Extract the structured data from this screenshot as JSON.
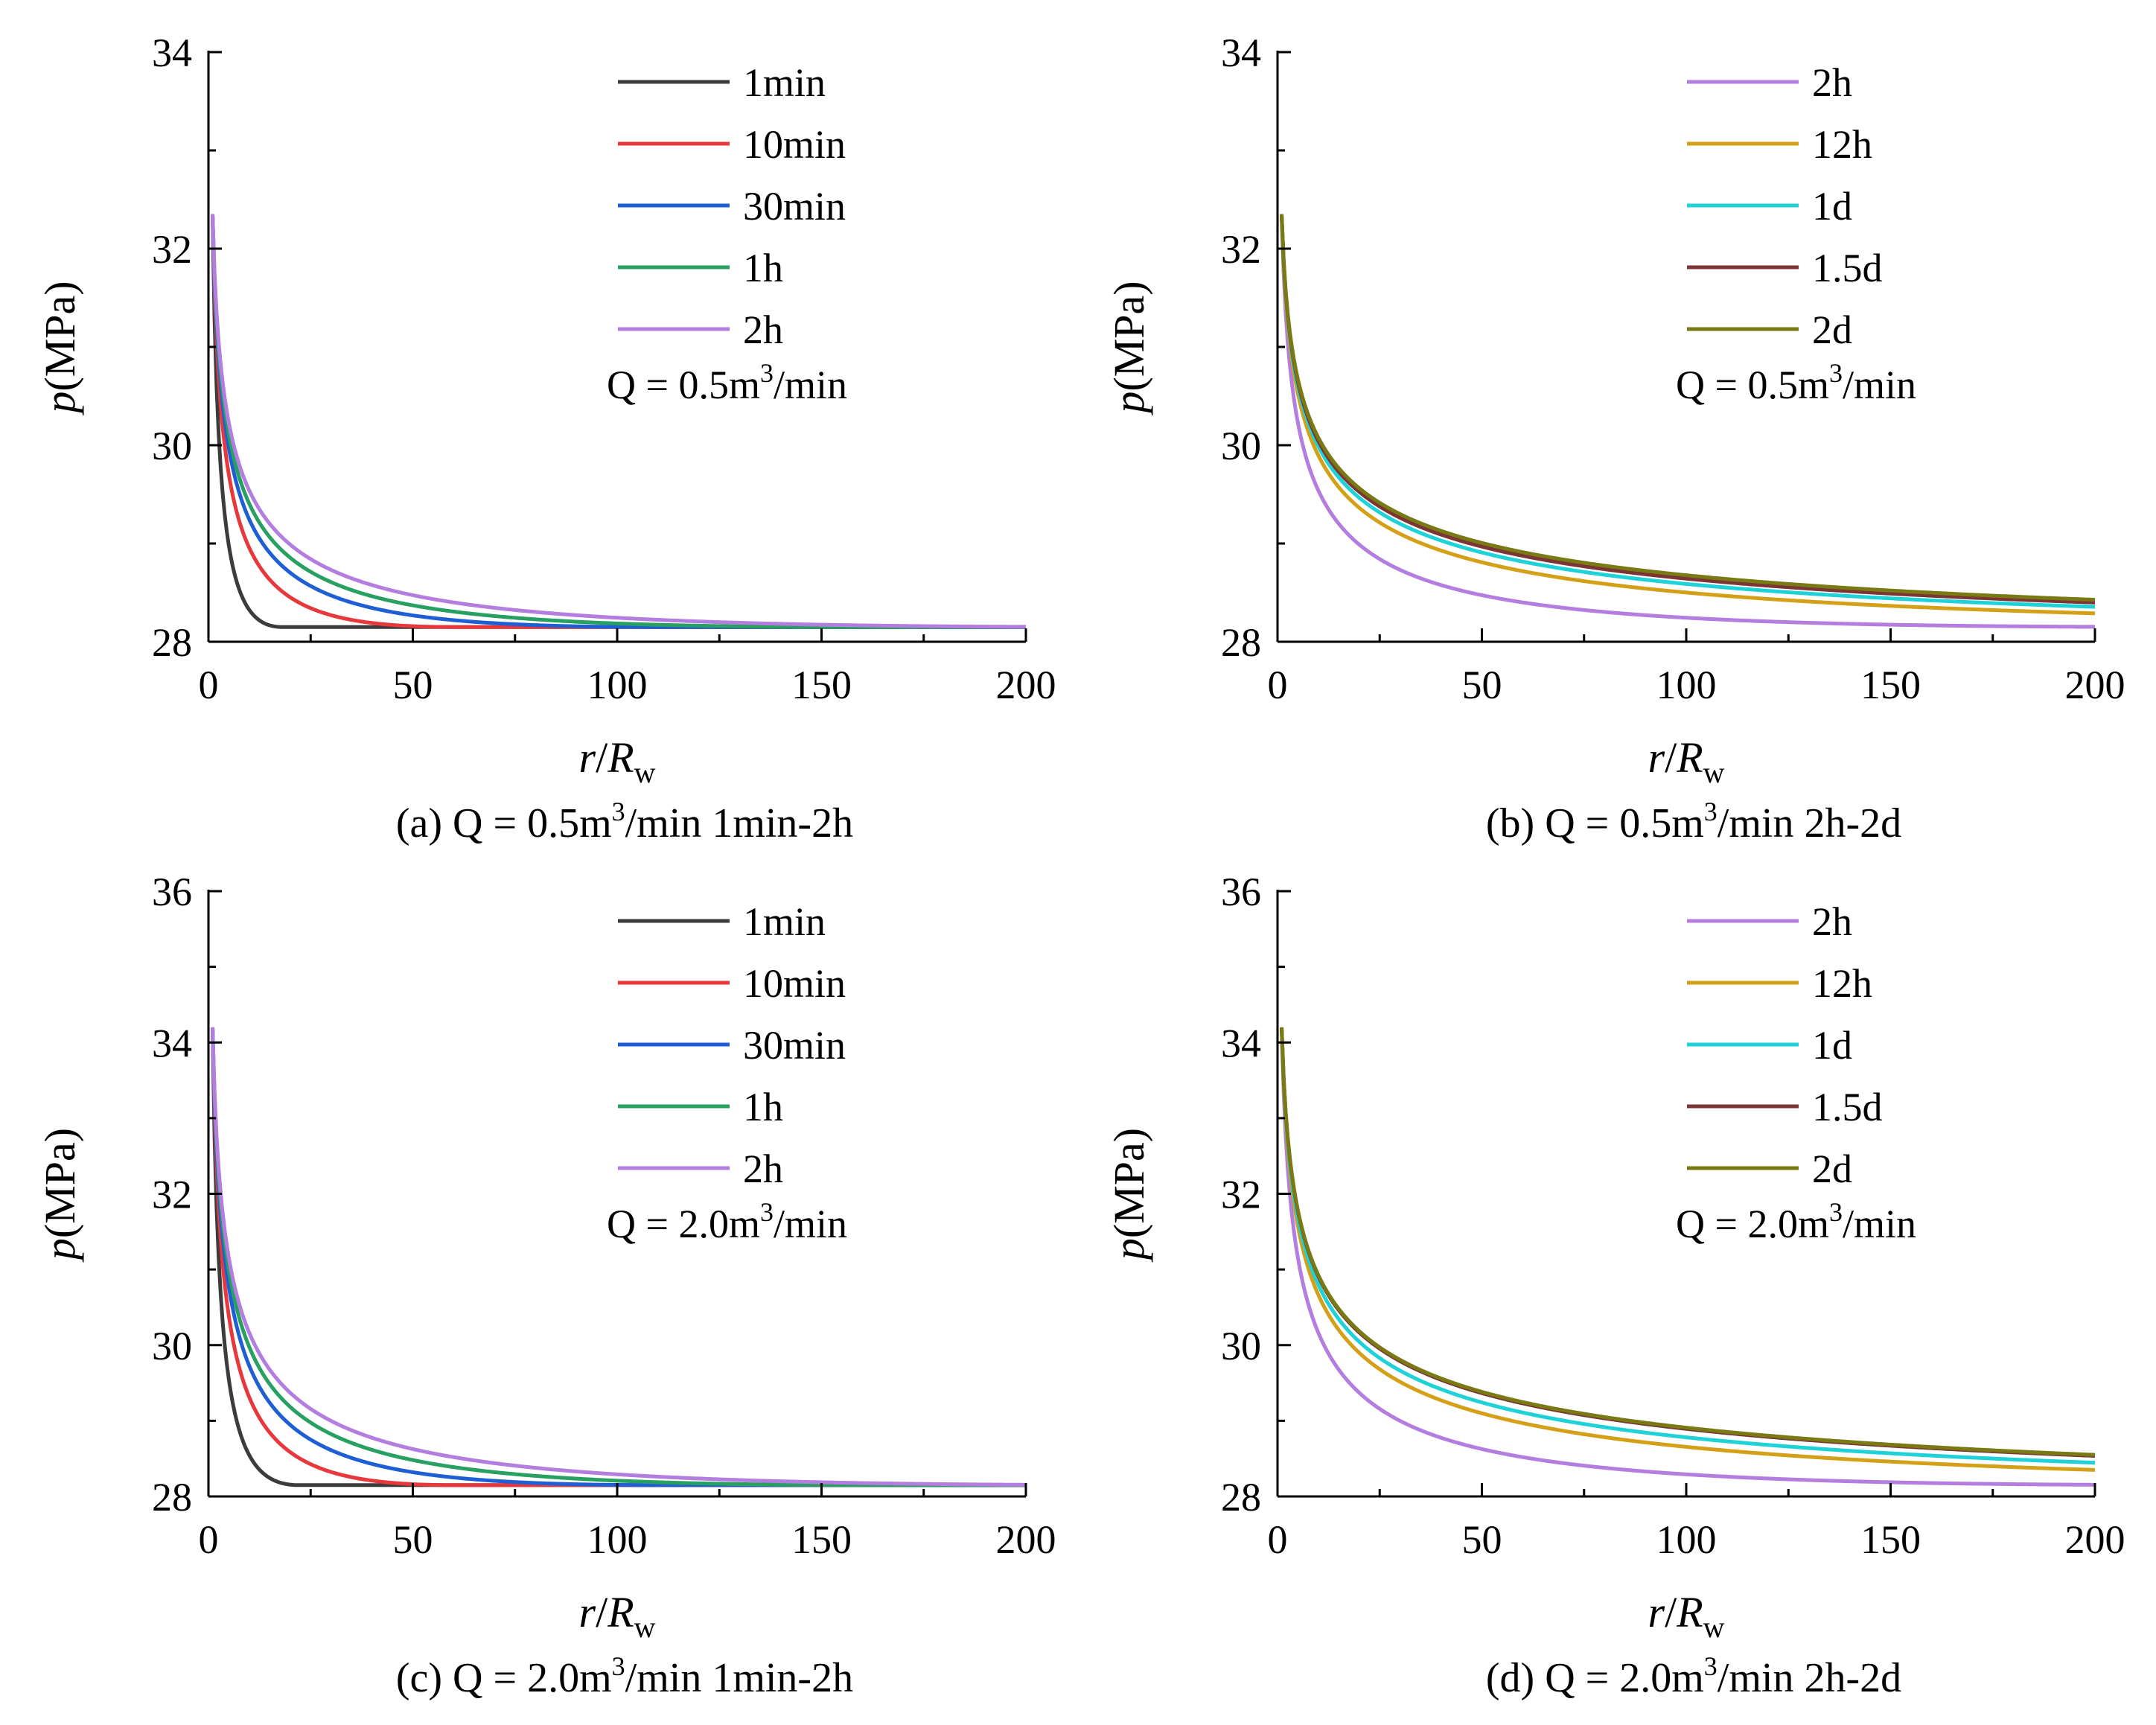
{
  "figure": {
    "label_p": "p",
    "label_mpa": "(MPa)",
    "label_r": "r",
    "label_slash": "/",
    "label_R": "R",
    "label_w": "w"
  },
  "chart_data": [
    {
      "type": "line",
      "panel": "a",
      "caption": {
        "pre": "(a) Q = 0.5m",
        "sup": "3",
        "post": "/min 1min-2h"
      },
      "annotation": {
        "pre": "Q = 0.5m",
        "sup": "3",
        "post": "/min"
      },
      "xlabel": "r/Rw",
      "ylabel": "p(MPa)",
      "xlim": [
        0,
        200
      ],
      "ylim": [
        28,
        34
      ],
      "xticks": [
        0,
        50,
        100,
        150,
        200
      ],
      "yticks": [
        28,
        30,
        32,
        34
      ],
      "p0": 28.15,
      "pw": 32.35,
      "legend_position": "top-right",
      "series": [
        {
          "name": "1min",
          "color": "#3c3c3c",
          "R": 18
        },
        {
          "name": "10min",
          "color": "#e8383c",
          "R": 60
        },
        {
          "name": "30min",
          "color": "#1f5fd6",
          "R": 110
        },
        {
          "name": "1h",
          "color": "#27a062",
          "R": 160
        },
        {
          "name": "2h",
          "color": "#b37ee0",
          "R": 225
        }
      ]
    },
    {
      "type": "line",
      "panel": "b",
      "caption": {
        "pre": "(b) Q = 0.5m",
        "sup": "3",
        "post": "/min 2h-2d"
      },
      "annotation": {
        "pre": "Q = 0.5m",
        "sup": "3",
        "post": "/min"
      },
      "xlabel": "r/Rw",
      "ylabel": "p(MPa)",
      "xlim": [
        0,
        200
      ],
      "ylim": [
        28,
        34
      ],
      "xticks": [
        0,
        50,
        100,
        150,
        200
      ],
      "yticks": [
        28,
        30,
        32,
        34
      ],
      "p0": 28.15,
      "pw": 32.35,
      "legend_position": "top-right",
      "series": [
        {
          "name": "2h",
          "color": "#b37ee0",
          "R": 225
        },
        {
          "name": "12h",
          "color": "#d4a017",
          "R": 650
        },
        {
          "name": "1d",
          "color": "#1fd2d8",
          "R": 900
        },
        {
          "name": "1.5d",
          "color": "#7b3535",
          "R": 1100
        },
        {
          "name": "2d",
          "color": "#7a7a14",
          "R": 1250
        }
      ]
    },
    {
      "type": "line",
      "panel": "c",
      "caption": {
        "pre": "(c) Q = 2.0m",
        "sup": "3",
        "post": "/min 1min-2h"
      },
      "annotation": {
        "pre": "Q = 2.0m",
        "sup": "3",
        "post": "/min"
      },
      "xlabel": "r/Rw",
      "ylabel": "p(MPa)",
      "xlim": [
        0,
        200
      ],
      "ylim": [
        28,
        36
      ],
      "xticks": [
        0,
        50,
        100,
        150,
        200
      ],
      "yticks": [
        28,
        30,
        32,
        34,
        36
      ],
      "p0": 28.15,
      "pw": 34.2,
      "legend_position": "top-right",
      "series": [
        {
          "name": "1min",
          "color": "#3c3c3c",
          "R": 22
        },
        {
          "name": "10min",
          "color": "#e8383c",
          "R": 60
        },
        {
          "name": "30min",
          "color": "#1f5fd6",
          "R": 110
        },
        {
          "name": "1h",
          "color": "#27a062",
          "R": 165
        },
        {
          "name": "2h",
          "color": "#b37ee0",
          "R": 230
        }
      ]
    },
    {
      "type": "line",
      "panel": "d",
      "caption": {
        "pre": "(d) Q = 2.0m",
        "sup": "3",
        "post": "/min 2h-2d"
      },
      "annotation": {
        "pre": "Q = 2.0m",
        "sup": "3",
        "post": "/min"
      },
      "xlabel": "r/Rw",
      "ylabel": "p(MPa)",
      "xlim": [
        0,
        200
      ],
      "ylim": [
        28,
        36
      ],
      "xticks": [
        0,
        50,
        100,
        150,
        200
      ],
      "yticks": [
        28,
        30,
        32,
        34,
        36
      ],
      "p0": 28.15,
      "pw": 34.2,
      "legend_position": "top-right",
      "series": [
        {
          "name": "2h",
          "color": "#b37ee0",
          "R": 230
        },
        {
          "name": "12h",
          "color": "#d4a017",
          "R": 650
        },
        {
          "name": "1d",
          "color": "#1fd2d8",
          "R": 900
        },
        {
          "name": "1.5d",
          "color": "#7b3535",
          "R": 1200
        },
        {
          "name": "2d",
          "color": "#7a7a14",
          "R": 1250
        }
      ]
    }
  ]
}
